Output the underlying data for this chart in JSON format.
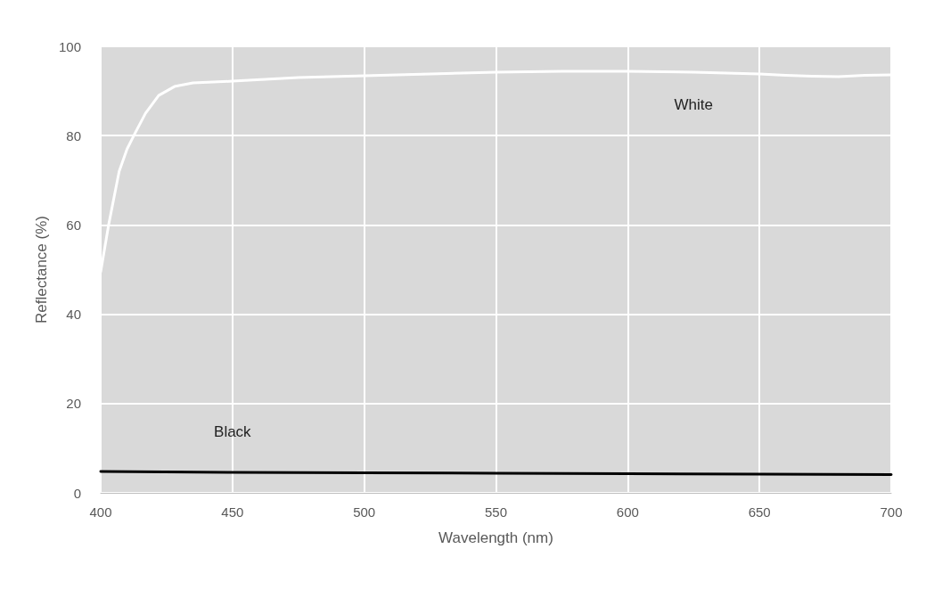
{
  "chart_data": {
    "type": "line",
    "xlabel": "Wavelength (nm)",
    "ylabel": "Reflectance (%)",
    "xlim": [
      400,
      700
    ],
    "xticks": [
      400,
      450,
      500,
      550,
      600,
      650,
      700
    ],
    "ylim": [
      0,
      100
    ],
    "yticks": [
      0,
      20,
      40,
      60,
      80,
      100
    ],
    "grid": true,
    "legend": false,
    "marker": "none",
    "line_style": "solid",
    "series": [
      {
        "name": "White",
        "color": "#ffffff",
        "x": [
          400,
          403,
          407,
          410,
          413,
          417,
          422,
          428,
          435,
          450,
          475,
          500,
          525,
          550,
          575,
          600,
          625,
          650,
          660,
          670,
          680,
          690,
          700
        ],
        "values": [
          49.5,
          60,
          72,
          77,
          80.5,
          85,
          89,
          91,
          91.8,
          92.2,
          93,
          93.4,
          93.8,
          94.2,
          94.4,
          94.4,
          94.2,
          93.8,
          93.5,
          93.3,
          93.2,
          93.5,
          93.6
        ]
      },
      {
        "name": "Black",
        "color": "#000000",
        "x": [
          400,
          450,
          500,
          550,
          600,
          650,
          700
        ],
        "values": [
          4.8,
          4.6,
          4.5,
          4.4,
          4.3,
          4.2,
          4.1
        ]
      }
    ]
  }
}
